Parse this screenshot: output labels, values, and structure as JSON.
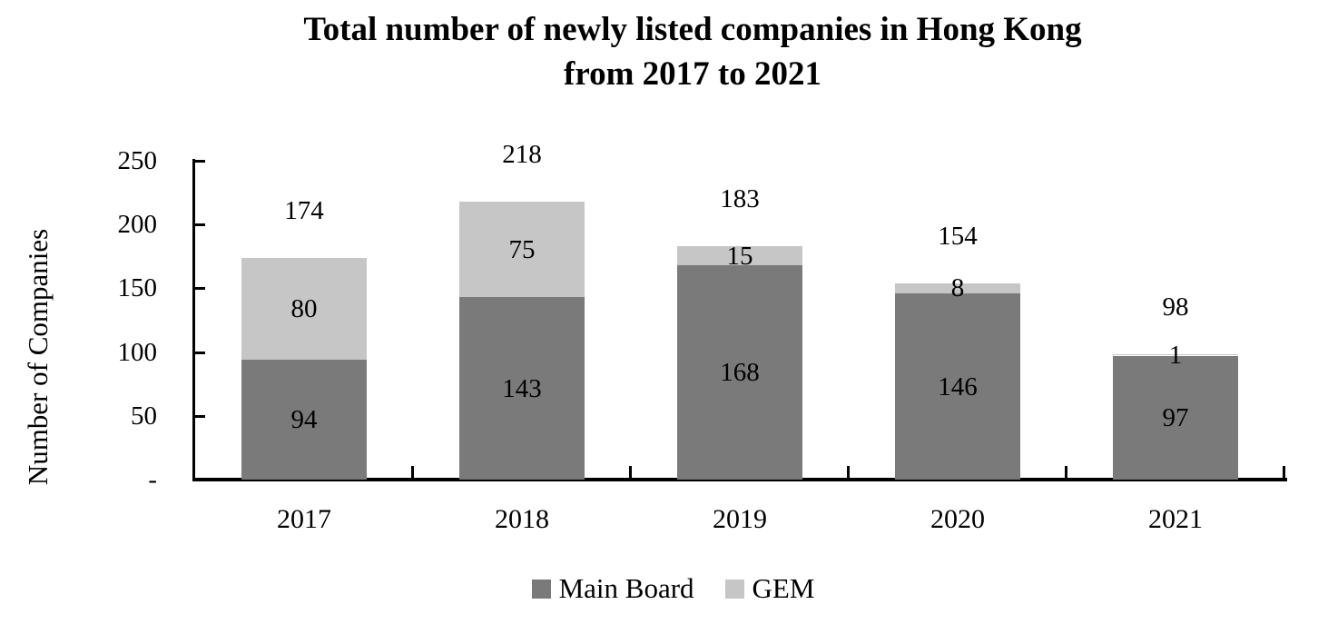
{
  "chart_data": {
    "type": "bar",
    "stacked": true,
    "title": "Total number of newly listed companies in Hong Kong from 2017 to 2021",
    "title_line1": "Total number of newly listed companies in Hong Kong",
    "title_line2": "from 2017 to 2021",
    "ylabel": "Number of Companies",
    "xlabel": "",
    "categories": [
      "2017",
      "2018",
      "2019",
      "2020",
      "2021"
    ],
    "series": [
      {
        "name": "Main Board",
        "color": "#7A7A7A",
        "values": [
          94,
          143,
          168,
          146,
          97
        ]
      },
      {
        "name": "GEM",
        "color": "#C6C6C6",
        "values": [
          80,
          75,
          15,
          8,
          1
        ]
      }
    ],
    "totals": [
      174,
      218,
      183,
      154,
      98
    ],
    "y_ticks": [
      {
        "label": "250",
        "value": 250
      },
      {
        "label": "200",
        "value": 200
      },
      {
        "label": "150",
        "value": 150
      },
      {
        "label": "100",
        "value": 100
      },
      {
        "label": "50",
        "value": 50
      },
      {
        "label": "-",
        "value": 0
      }
    ],
    "ylim": [
      0,
      250
    ],
    "grid": false,
    "legend_position": "bottom",
    "axis_color": "#000000",
    "text_color": "#000000",
    "background_color": "#FFFFFF"
  }
}
